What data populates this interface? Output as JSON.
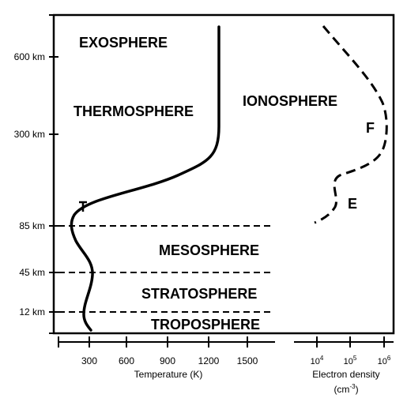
{
  "altitude_axis": {
    "ticks": [
      "600 km",
      "300 km",
      "85 km",
      "45 km",
      "12 km"
    ]
  },
  "layers": {
    "exosphere": "EXOSPHERE",
    "thermosphere": "THERMOSPHERE",
    "ionosphere": "IONOSPHERE",
    "mesosphere": "MESOSPHERE",
    "stratosphere": "STRATOSPHERE",
    "troposphere": "TROPOSPHERE"
  },
  "ionosphere_regions": {
    "f": "F",
    "e": "E"
  },
  "temperature_axis": {
    "ticks": [
      "300",
      "600",
      "900",
      "1200",
      "1500"
    ],
    "label": "Temperature (K)"
  },
  "density_axis": {
    "tick_base": "10",
    "tick_exponents": [
      "4",
      "5",
      "6"
    ],
    "label": "Electron density",
    "unit_base": "(cm",
    "unit_exponent": "-3",
    "unit_close": ")"
  },
  "colors": {
    "ink": "#000000",
    "background": "#ffffff"
  }
}
